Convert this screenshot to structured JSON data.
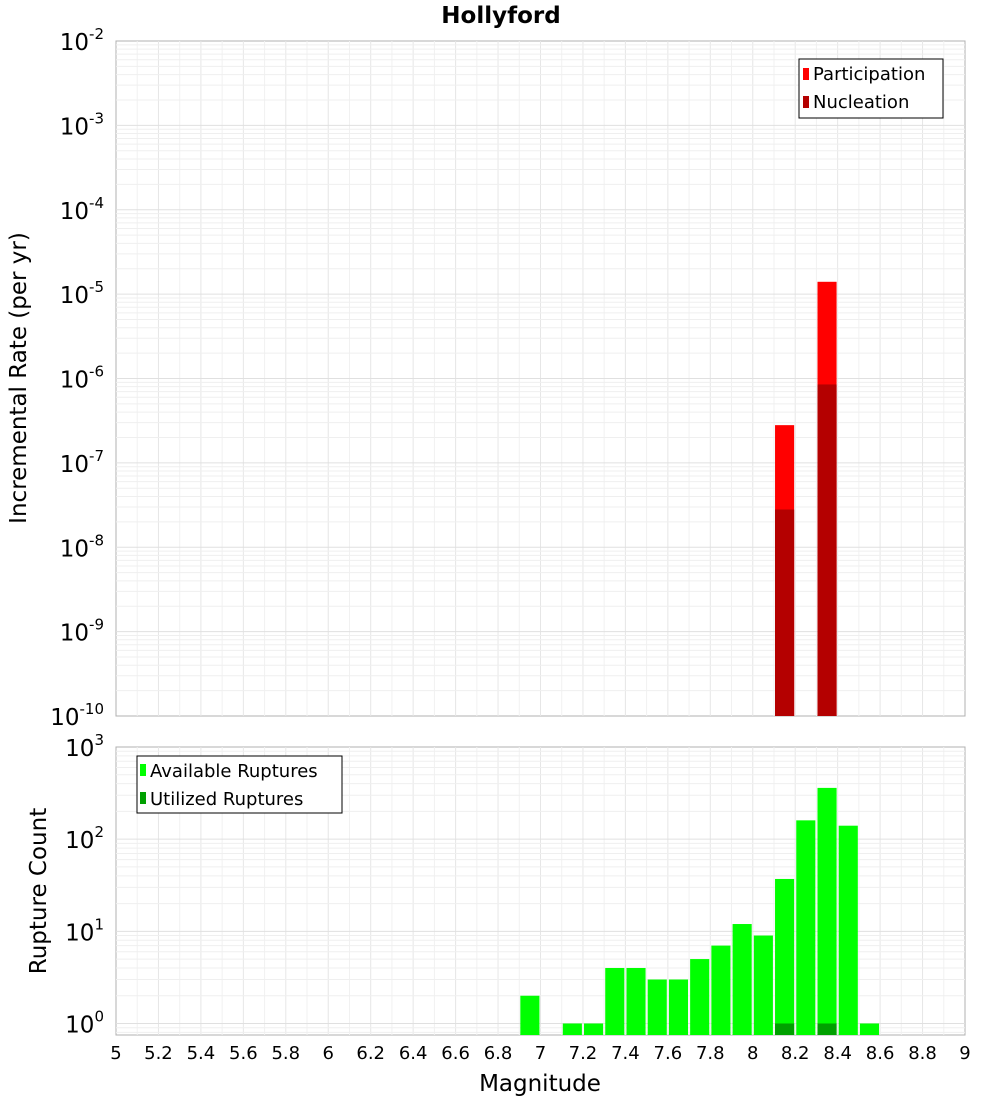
{
  "chart_data": [
    {
      "type": "bar",
      "title": "Hollyford",
      "ylabel": "Incremental Rate (per yr)",
      "xlabel": "",
      "yscale": "log",
      "xlim": [
        5,
        9
      ],
      "ylim": [
        1e-10,
        0.01
      ],
      "y_tick_exponents": [
        "-10",
        "-9",
        "-8",
        "-7",
        "-6",
        "-5",
        "-4",
        "-3",
        "-2"
      ],
      "grid": true,
      "legend_position": "top-right",
      "bar_width": 0.09,
      "series": [
        {
          "name": "Participation",
          "color": "#ff0000",
          "x": [
            8.15,
            8.35
          ],
          "values": [
            2.8e-07,
            1.4e-05
          ]
        },
        {
          "name": "Nucleation",
          "color": "#b40000",
          "x": [
            8.15,
            8.35
          ],
          "values": [
            2.8e-08,
            8.5e-07
          ]
        }
      ]
    },
    {
      "type": "bar",
      "title": "",
      "ylabel": "Rupture Count",
      "xlabel": "Magnitude",
      "yscale": "log",
      "xlim": [
        5,
        9
      ],
      "ylim": [
        0.75,
        1000
      ],
      "y_tick_exponents": [
        "0",
        "1",
        "2",
        "3"
      ],
      "x_ticks": [
        "5",
        "5.2",
        "5.4",
        "5.6",
        "5.8",
        "6",
        "6.2",
        "6.4",
        "6.6",
        "6.8",
        "7",
        "7.2",
        "7.4",
        "7.6",
        "7.8",
        "8",
        "8.2",
        "8.4",
        "8.6",
        "8.8",
        "9"
      ],
      "grid": true,
      "legend_position": "top-left",
      "bar_width": 0.09,
      "series": [
        {
          "name": "Available Ruptures",
          "color": "#00ff00",
          "x": [
            6.95,
            7.15,
            7.25,
            7.35,
            7.45,
            7.55,
            7.65,
            7.75,
            7.85,
            7.95,
            8.05,
            8.15,
            8.25,
            8.35,
            8.45,
            8.55
          ],
          "values": [
            2,
            1,
            1,
            4,
            4,
            3,
            3,
            5,
            7,
            12,
            9,
            37,
            160,
            360,
            140,
            1
          ]
        },
        {
          "name": "Utilized Ruptures",
          "color": "#00a000",
          "x": [
            8.15,
            8.35
          ],
          "values": [
            1,
            1
          ]
        }
      ]
    }
  ]
}
